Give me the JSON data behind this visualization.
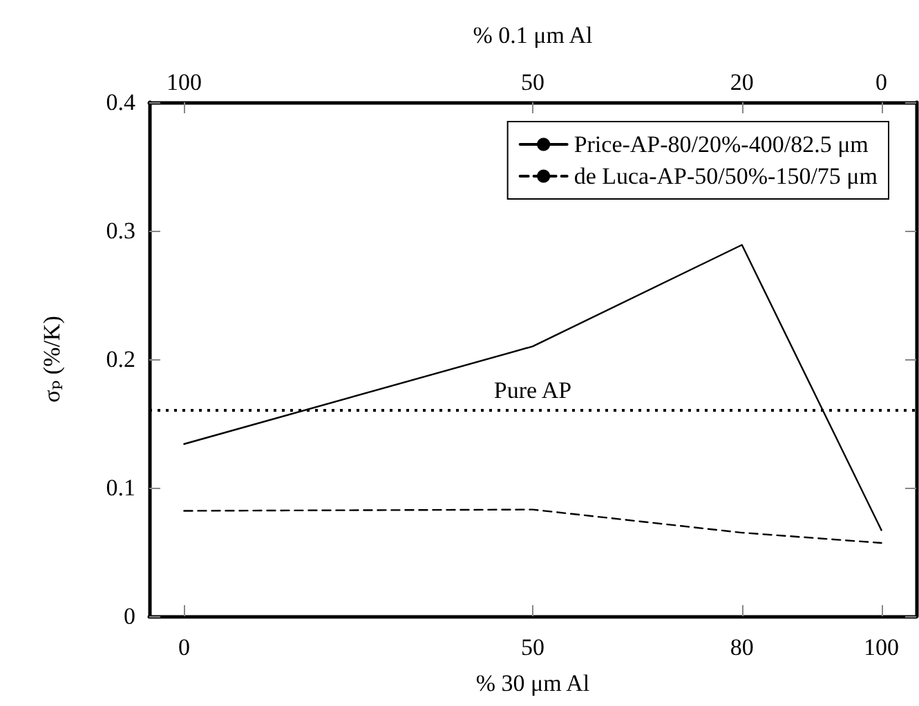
{
  "chart_data": {
    "type": "line",
    "xlabel": "% 30 μm Al",
    "x2label": "% 0.1 μm Al",
    "ylabel": "σₚ (%/K)",
    "x": [
      0,
      50,
      80,
      100
    ],
    "series": [
      {
        "name": "Price-AP-80/20%-400/82.5 μm",
        "color": "#000000",
        "line_style": "solid",
        "values": [
          0.134,
          0.21,
          0.289,
          0.067
        ]
      },
      {
        "name": "de Luca-AP-50/50%-150/75 μm",
        "color": "#000000",
        "line_style": "dashed",
        "values": [
          0.082,
          0.083,
          0.065,
          0.057
        ]
      }
    ],
    "xlim": [
      -5,
      105
    ],
    "xticks": [
      0,
      50,
      80,
      100
    ],
    "x2lim": [
      105,
      -5
    ],
    "x2ticks": [
      100,
      50,
      20,
      0
    ],
    "ylim": [
      0,
      0.4
    ],
    "yticks": [
      0,
      0.1,
      0.2,
      0.3,
      0.4
    ],
    "ref_lines": [
      {
        "axis": "y",
        "value": 0.16,
        "label": "Pure AP",
        "color": "#000000",
        "line_style": "dotted"
      }
    ],
    "legend": "top right",
    "grid": false,
    "marker": "none"
  }
}
